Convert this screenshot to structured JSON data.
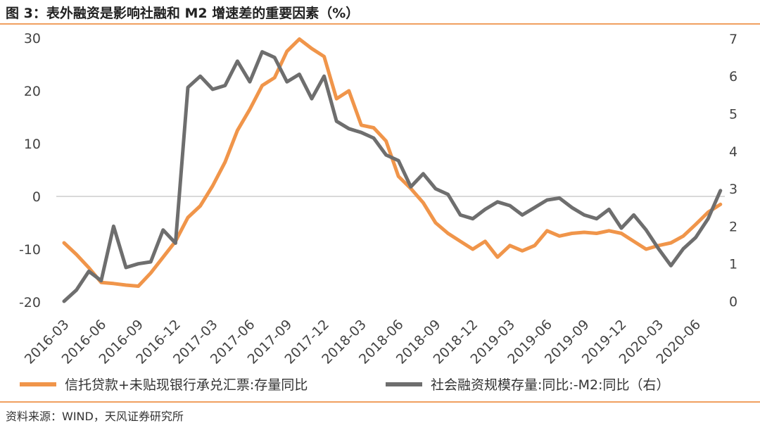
{
  "header": {
    "title": "图 3：表外融资是影响社融和 M2 增速差的重要因素（%）"
  },
  "footer": {
    "source": "资料来源：WIND，天风证券研究所"
  },
  "chart_data": {
    "type": "line",
    "title": "图 3：表外融资是影响社融和 M2 增速差的重要因素（%）",
    "left_axis": {
      "ylim": [
        -20,
        30
      ],
      "ticks": [
        30,
        20,
        10,
        0,
        -10,
        -20
      ]
    },
    "right_axis": {
      "ylim": [
        0,
        7
      ],
      "ticks": [
        7,
        6,
        5,
        4,
        3,
        2,
        1,
        0
      ]
    },
    "x_tick_labels": [
      "2016-03",
      "2016-06",
      "2016-09",
      "2016-12",
      "2017-03",
      "2017-06",
      "2017-09",
      "2017-12",
      "2018-03",
      "2018-06",
      "2018-09",
      "2018-12",
      "2019-03",
      "2019-06",
      "2019-09",
      "2019-12",
      "2020-03",
      "2020-06"
    ],
    "x_months": [
      "2016-03",
      "2016-04",
      "2016-05",
      "2016-06",
      "2016-07",
      "2016-08",
      "2016-09",
      "2016-10",
      "2016-11",
      "2016-12",
      "2017-01",
      "2017-02",
      "2017-03",
      "2017-04",
      "2017-05",
      "2017-06",
      "2017-07",
      "2017-08",
      "2017-09",
      "2017-10",
      "2017-11",
      "2017-12",
      "2018-01",
      "2018-02",
      "2018-03",
      "2018-04",
      "2018-05",
      "2018-06",
      "2018-07",
      "2018-08",
      "2018-09",
      "2018-10",
      "2018-11",
      "2018-12",
      "2019-01",
      "2019-02",
      "2019-03",
      "2019-04",
      "2019-05",
      "2019-06",
      "2019-07",
      "2019-08",
      "2019-09",
      "2019-10",
      "2019-11",
      "2019-12",
      "2020-01",
      "2020-02",
      "2020-03",
      "2020-04",
      "2020-05",
      "2020-06",
      "2020-07",
      "2020-08"
    ],
    "series": [
      {
        "name": "信托贷款+未贴现银行承兑汇票:存量同比",
        "axis": "left",
        "color": "#f0954a",
        "values": [
          -8.8,
          -11.0,
          -13.5,
          -16.3,
          -16.5,
          -16.8,
          -17.0,
          -14.5,
          -11.5,
          -8.5,
          -4.0,
          -1.8,
          2.0,
          6.5,
          12.5,
          16.5,
          21.0,
          22.5,
          27.5,
          29.8,
          28.0,
          26.5,
          18.5,
          20.0,
          13.5,
          13.0,
          10.5,
          3.8,
          1.5,
          -1.2,
          -5.0,
          -7.0,
          -8.5,
          -10.0,
          -8.5,
          -11.5,
          -9.3,
          -10.3,
          -9.3,
          -6.5,
          -7.5,
          -7.0,
          -6.8,
          -7.0,
          -6.5,
          -7.0,
          -8.5,
          -10.0,
          -9.3,
          -8.8,
          -7.5,
          -5.3,
          -3.0,
          -1.5
        ]
      },
      {
        "name": "社会融资规模存量:同比:-M2:同比（右）",
        "axis": "right",
        "color": "#6e6e6e",
        "values": [
          0.0,
          0.3,
          0.8,
          0.55,
          2.0,
          0.9,
          1.0,
          1.05,
          1.9,
          1.55,
          5.7,
          6.0,
          5.65,
          5.75,
          6.4,
          5.85,
          6.65,
          6.5,
          5.85,
          6.05,
          5.4,
          6.0,
          4.8,
          4.6,
          4.5,
          4.35,
          3.9,
          3.75,
          3.05,
          3.4,
          3.0,
          2.85,
          2.3,
          2.2,
          2.45,
          2.65,
          2.55,
          2.3,
          2.5,
          2.7,
          2.75,
          2.5,
          2.3,
          2.2,
          2.45,
          1.95,
          2.3,
          1.9,
          1.4,
          0.95,
          1.4,
          1.7,
          2.2,
          2.95
        ]
      }
    ]
  }
}
